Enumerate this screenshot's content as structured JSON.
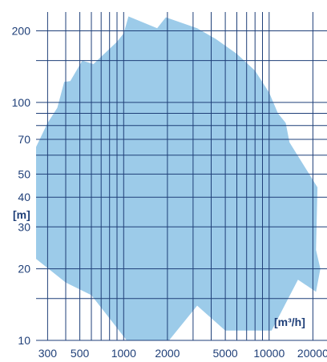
{
  "chart_data": {
    "type": "area",
    "title": "",
    "xlabel": "[m³/h]",
    "ylabel": "[m]",
    "x_scale": "log",
    "y_scale": "log",
    "xlim": [
      250,
      25000
    ],
    "ylim": [
      10,
      240
    ],
    "x_gridlines": [
      300,
      400,
      500,
      600,
      700,
      800,
      900,
      1000,
      2000,
      3000,
      4000,
      5000,
      6000,
      7000,
      8000,
      9000,
      10000,
      20000
    ],
    "y_gridlines": [
      15,
      20,
      30,
      40,
      50,
      60,
      70,
      80,
      90,
      100,
      150,
      200
    ],
    "x_ticks": [
      {
        "value": 300,
        "label": "300"
      },
      {
        "value": 500,
        "label": "500"
      },
      {
        "value": 1000,
        "label": "1000"
      },
      {
        "value": 2000,
        "label": "2000"
      },
      {
        "value": 5000,
        "label": "5000"
      },
      {
        "value": 10000,
        "label": "10000"
      },
      {
        "value": 20000,
        "label": "20000"
      }
    ],
    "y_ticks": [
      {
        "value": 10,
        "label": "10"
      },
      {
        "value": 20,
        "label": "20"
      },
      {
        "value": 30,
        "label": "30"
      },
      {
        "value": 40,
        "label": "40"
      },
      {
        "value": 50,
        "label": "50"
      },
      {
        "value": 70,
        "label": "70"
      },
      {
        "value": 100,
        "label": "100"
      },
      {
        "value": 200,
        "label": "200"
      }
    ],
    "grid": true,
    "colors": {
      "area_fill": "#9ccbe9",
      "grid": "#1f3f78",
      "text": "#1f3f78"
    },
    "series": [
      {
        "points": [
          [
            250,
            65
          ],
          [
            300,
            82
          ],
          [
            350,
            95
          ],
          [
            390,
            122
          ],
          [
            430,
            123
          ],
          [
            520,
            150
          ],
          [
            620,
            145
          ],
          [
            900,
            180
          ],
          [
            1000,
            195
          ],
          [
            1080,
            230
          ],
          [
            1700,
            205
          ],
          [
            1950,
            228
          ],
          [
            3200,
            205
          ],
          [
            4300,
            185
          ],
          [
            6000,
            160
          ],
          [
            8000,
            136
          ],
          [
            10000,
            110
          ],
          [
            11500,
            90
          ],
          [
            13000,
            82
          ],
          [
            13800,
            68
          ],
          [
            21500,
            44
          ],
          [
            21000,
            24
          ],
          [
            22500,
            20
          ],
          [
            21000,
            16
          ],
          [
            15800,
            18
          ],
          [
            10400,
            11
          ],
          [
            5000,
            11
          ],
          [
            3200,
            14
          ],
          [
            2050,
            10
          ],
          [
            1050,
            10
          ],
          [
            600,
            15.5
          ],
          [
            400,
            17.5
          ],
          [
            250,
            22
          ]
        ]
      }
    ]
  }
}
